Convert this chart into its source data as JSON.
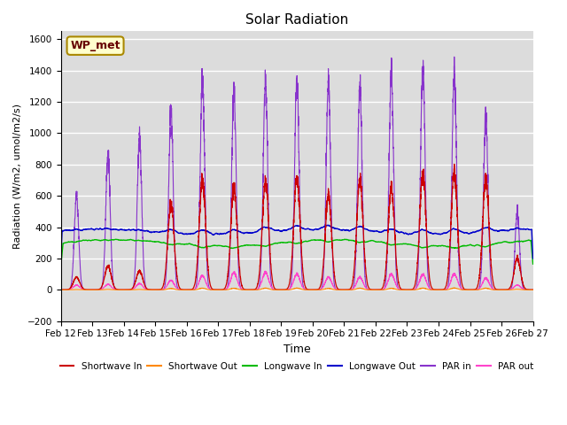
{
  "title": "Solar Radiation",
  "ylabel": "Radiation (W/m2, umol/m2/s)",
  "xlabel": "Time",
  "ylim": [
    -200,
    1650
  ],
  "yticks": [
    -200,
    0,
    200,
    400,
    600,
    800,
    1000,
    1200,
    1400,
    1600
  ],
  "background_color": "#dcdcdc",
  "legend_label": "WP_met",
  "series": {
    "shortwave_in": {
      "color": "#cc0000",
      "label": "Shortwave In"
    },
    "shortwave_out": {
      "color": "#ff8800",
      "label": "Shortwave Out"
    },
    "longwave_in": {
      "color": "#00bb00",
      "label": "Longwave In"
    },
    "longwave_out": {
      "color": "#0000cc",
      "label": "Longwave Out"
    },
    "par_in": {
      "color": "#8833cc",
      "label": "PAR in"
    },
    "par_out": {
      "color": "#ff44cc",
      "label": "PAR out"
    }
  },
  "x_tick_labels": [
    "Feb 12",
    "Feb 13",
    "Feb 14",
    "Feb 15",
    "Feb 16",
    "Feb 17",
    "Feb 18",
    "Feb 19",
    "Feb 20",
    "Feb 21",
    "Feb 22",
    "Feb 23",
    "Feb 24",
    "Feb 25",
    "Feb 26",
    "Feb 27"
  ],
  "n_days": 15,
  "points_per_day": 288,
  "day_peaks_sw": [
    80,
    150,
    120,
    550,
    700,
    650,
    700,
    720,
    600,
    700,
    650,
    730,
    750,
    700,
    200
  ],
  "day_peaks_par": [
    600,
    860,
    980,
    1150,
    1350,
    1260,
    1350,
    1350,
    1310,
    1300,
    1390,
    1400,
    1390,
    1100,
    490
  ],
  "day_peaks_par_out": [
    30,
    35,
    40,
    60,
    90,
    110,
    110,
    100,
    80,
    80,
    100,
    100,
    100,
    75,
    30
  ],
  "lw_in_base": 300,
  "lw_out_base": 370
}
